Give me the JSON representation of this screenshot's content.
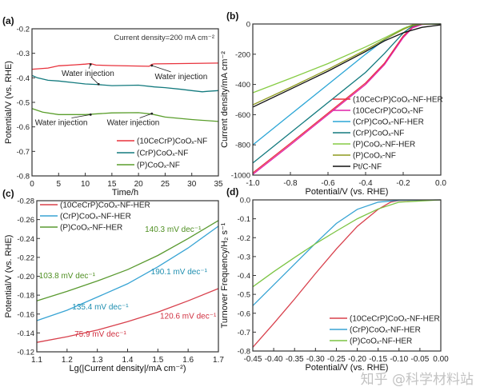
{
  "watermark": "知乎 @科学材料站",
  "chart_data": [
    {
      "panel": "(a)",
      "type": "line",
      "xlabel": "Time/h",
      "ylabel": "Potential/V (vs. RHE)",
      "xlim": [
        0,
        35
      ],
      "ylim": [
        -0.8,
        -0.2
      ],
      "xticks": [
        0,
        5,
        10,
        15,
        20,
        25,
        30,
        35
      ],
      "xtick_labels": [
        "0",
        "5",
        "10",
        "15",
        "20",
        "25",
        "30",
        "35"
      ],
      "yticks": [
        -0.2,
        -0.3,
        -0.4,
        -0.5,
        -0.6,
        -0.7,
        -0.8
      ],
      "ytick_labels": [
        "-0.2",
        "-0.3",
        "-0.4",
        "-0.5",
        "-0.6",
        "-0.7",
        "-0.8"
      ],
      "legend_position": "bottom-right",
      "note": "Current density=200 mA cm⁻²",
      "annotations": [
        {
          "text": "Water injection",
          "x": 10.5,
          "y": -0.392,
          "arrows": [
            [
              11,
              -0.345
            ],
            [
              12.5,
              -0.426
            ]
          ]
        },
        {
          "text": "Water injection",
          "x": 28,
          "y": -0.405,
          "arrows": [
            [
              22.5,
              -0.35
            ]
          ]
        },
        {
          "text": "Water injection",
          "x": 5.5,
          "y": -0.593,
          "arrows": [
            [
              11,
              -0.55
            ]
          ]
        },
        {
          "text": "Water injection",
          "x": 19,
          "y": -0.593,
          "arrows": [
            [
              22.5,
              -0.546
            ]
          ]
        }
      ],
      "series": [
        {
          "name": "(10CeCrP)CoOₓ-NF",
          "color": "#e8323c",
          "x": [
            0,
            3,
            5,
            8,
            10,
            11,
            12,
            15,
            20,
            22,
            22.5,
            23,
            28,
            35
          ],
          "y": [
            -0.365,
            -0.36,
            -0.351,
            -0.347,
            -0.344,
            -0.342,
            -0.348,
            -0.35,
            -0.352,
            -0.353,
            -0.345,
            -0.343,
            -0.342,
            -0.34
          ]
        },
        {
          "name": "(CrP)CoOₓ-NF",
          "color": "#137a7e",
          "x": [
            0,
            1,
            3,
            5,
            8,
            10,
            12,
            15,
            20,
            23,
            25,
            28,
            30,
            32,
            33,
            35
          ],
          "y": [
            -0.39,
            -0.4,
            -0.41,
            -0.413,
            -0.42,
            -0.425,
            -0.427,
            -0.432,
            -0.43,
            -0.437,
            -0.44,
            -0.447,
            -0.452,
            -0.457,
            -0.455,
            -0.452
          ]
        },
        {
          "name": "(P)CoOₓ-NF",
          "color": "#5a9e2c",
          "x": [
            0,
            2,
            5,
            10,
            15,
            20,
            22.5,
            25,
            30,
            35
          ],
          "y": [
            -0.525,
            -0.54,
            -0.55,
            -0.55,
            -0.543,
            -0.542,
            -0.548,
            -0.56,
            -0.57,
            -0.578
          ]
        }
      ]
    },
    {
      "panel": "(b)",
      "type": "line",
      "xlabel": "Potential/V (vs. RHE)",
      "ylabel": "Current density/mA cm⁻²",
      "xlim": [
        -1.0,
        0.0
      ],
      "ylim": [
        -1000,
        0
      ],
      "xticks": [
        -1.0,
        -0.8,
        -0.6,
        -0.4,
        -0.2,
        0.0
      ],
      "xtick_labels": [
        "-1.0",
        "-0.8",
        "-0.6",
        "-0.4",
        "-0.2",
        "0.0"
      ],
      "yticks": [
        0,
        -200,
        -400,
        -600,
        -800,
        -1000
      ],
      "ytick_labels": [
        "0",
        "-200",
        "-400",
        "-600",
        "-800",
        "-1000"
      ],
      "legend_position": "bottom-right",
      "series": [
        {
          "name": "(10CeCrP)CoOₓ-NF-HER",
          "color": "#e8323c",
          "x": [
            -1,
            -0.8,
            -0.6,
            -0.4,
            -0.3,
            -0.2,
            -0.15,
            -0.1,
            0
          ],
          "y": [
            -985,
            -790,
            -590,
            -390,
            -260,
            -80,
            -20,
            -2,
            0
          ]
        },
        {
          "name": "(10CeCrP)CoOₓ-NF",
          "color": "#e020a8",
          "x": [
            -1,
            -0.8,
            -0.6,
            -0.4,
            -0.3,
            -0.2,
            -0.15,
            -0.1,
            0
          ],
          "y": [
            -995,
            -800,
            -600,
            -400,
            -270,
            -90,
            -25,
            -3,
            0
          ]
        },
        {
          "name": "(CrP)CoOₓ-NF-HER",
          "color": "#2ba6d6",
          "x": [
            -1,
            -0.8,
            -0.6,
            -0.4,
            -0.3,
            -0.2,
            -0.15,
            -0.1,
            0
          ],
          "y": [
            -800,
            -600,
            -400,
            -200,
            -105,
            -30,
            -6,
            -1,
            0
          ]
        },
        {
          "name": "(CrP)CoOₓ-NF",
          "color": "#137a7e",
          "x": [
            -1,
            -0.8,
            -0.6,
            -0.4,
            -0.3,
            -0.2,
            -0.15,
            -0.1,
            0
          ],
          "y": [
            -920,
            -720,
            -520,
            -320,
            -195,
            -60,
            -12,
            -1,
            0
          ]
        },
        {
          "name": "(P)CoOₓ-NF-HER",
          "color": "#86cc44",
          "x": [
            -1,
            -0.8,
            -0.6,
            -0.4,
            -0.3,
            -0.2,
            -0.15,
            -0.1,
            0
          ],
          "y": [
            -455,
            -360,
            -262,
            -152,
            -92,
            -30,
            -6,
            -1,
            0
          ]
        },
        {
          "name": "(P)CoOₓ-NF",
          "color": "#8e9a1e",
          "x": [
            -1,
            -0.8,
            -0.6,
            -0.4,
            -0.3,
            -0.2,
            -0.15,
            -0.1,
            0
          ],
          "y": [
            -535,
            -420,
            -300,
            -172,
            -102,
            -36,
            -8,
            -1,
            0
          ]
        },
        {
          "name": "Pt/C-NF",
          "color": "#111111",
          "x": [
            -1,
            -0.8,
            -0.6,
            -0.4,
            -0.3,
            -0.2,
            -0.1,
            0
          ],
          "y": [
            -550,
            -432,
            -312,
            -182,
            -112,
            -58,
            -22,
            -6
          ]
        }
      ]
    },
    {
      "panel": "(c)",
      "type": "line",
      "xlabel": "Lg(|Current density|/mA cm⁻²)",
      "ylabel": "Potential/V (vs. RHE)",
      "xlim": [
        1.1,
        1.7
      ],
      "ylim": [
        -0.12,
        -0.28
      ],
      "xticks": [
        1.1,
        1.2,
        1.3,
        1.4,
        1.5,
        1.6,
        1.7
      ],
      "xtick_labels": [
        "1.1",
        "1.2",
        "1.3",
        "1.4",
        "1.5",
        "1.6",
        "1.7"
      ],
      "yticks": [
        -0.28,
        -0.26,
        -0.24,
        -0.22,
        -0.2,
        -0.18,
        -0.16,
        -0.14,
        -0.12
      ],
      "ytick_labels": [
        "-0.28",
        "-0.26",
        "-0.24",
        "-0.22",
        "-0.20",
        "-0.18",
        "-0.16",
        "-0.14",
        "-0.12"
      ],
      "legend_position": "top-left",
      "annotations": [
        {
          "text": "140.3 mV dec⁻¹",
          "x": 1.55,
          "y": -0.247,
          "color": "#4f8f22"
        },
        {
          "text": "190.1 mV dec⁻¹",
          "x": 1.57,
          "y": -0.202,
          "color": "#1f8fb0"
        },
        {
          "text": "103.8 mV dec⁻¹",
          "x": 1.2,
          "y": -0.198,
          "color": "#4f8f22"
        },
        {
          "text": "135.4 mV dec⁻¹",
          "x": 1.31,
          "y": -0.165,
          "color": "#1f8fb0"
        },
        {
          "text": "120.6 mV dec⁻¹",
          "x": 1.6,
          "y": -0.155,
          "color": "#d03040"
        },
        {
          "text": "75.9 mV dec⁻¹",
          "x": 1.31,
          "y": -0.136,
          "color": "#d03040"
        }
      ],
      "series": [
        {
          "name": "(10CeCrP)CoOₓ-NF-HER",
          "color": "#d8404c",
          "x": [
            1.1,
            1.2,
            1.3,
            1.4,
            1.5,
            1.6,
            1.7
          ],
          "y": [
            -0.13,
            -0.136,
            -0.143,
            -0.152,
            -0.162,
            -0.174,
            -0.187
          ]
        },
        {
          "name": "(CrP)CoOₓ-NF-HER",
          "color": "#38a4d4",
          "x": [
            1.1,
            1.2,
            1.3,
            1.4,
            1.5,
            1.6,
            1.7
          ],
          "y": [
            -0.153,
            -0.164,
            -0.178,
            -0.192,
            -0.21,
            -0.23,
            -0.253
          ]
        },
        {
          "name": "(P)CoOₓ-NF-HER",
          "color": "#5a9a30",
          "x": [
            1.1,
            1.2,
            1.3,
            1.4,
            1.5,
            1.6,
            1.7
          ],
          "y": [
            -0.174,
            -0.184,
            -0.195,
            -0.207,
            -0.222,
            -0.24,
            -0.259
          ]
        }
      ]
    },
    {
      "panel": "(d)",
      "type": "line",
      "xlabel": "Potential/V (vs. RHE)",
      "ylabel": "Turnover Frequency/H₂ s⁻¹",
      "xlim": [
        -0.45,
        0.0
      ],
      "ylim": [
        -0.8,
        0.0
      ],
      "xticks": [
        -0.45,
        -0.4,
        -0.35,
        -0.3,
        -0.25,
        -0.2,
        -0.15,
        -0.1,
        -0.05,
        0.0
      ],
      "xtick_labels": [
        "-0.45",
        "-0.40",
        "-0.35",
        "-0.30",
        "-0.25",
        "-0.20",
        "-0.15",
        "-0.10",
        "-0.05",
        "0.00"
      ],
      "yticks": [
        0.0,
        -0.1,
        -0.2,
        -0.3,
        -0.4,
        -0.5,
        -0.6,
        -0.7,
        -0.8
      ],
      "ytick_labels": [
        "0.0",
        "-0.1",
        "-0.2",
        "-0.3",
        "-0.4",
        "-0.5",
        "-0.6",
        "-0.7",
        "-0.8"
      ],
      "legend_position": "bottom-right",
      "series": [
        {
          "name": "(10CeCrP)CoOₓ-NF-HER",
          "color": "#d8404c",
          "x": [
            -0.45,
            -0.4,
            -0.35,
            -0.3,
            -0.25,
            -0.2,
            -0.15,
            -0.12,
            -0.1,
            0
          ],
          "y": [
            -0.78,
            -0.655,
            -0.525,
            -0.39,
            -0.26,
            -0.14,
            -0.05,
            -0.012,
            -0.003,
            0
          ]
        },
        {
          "name": "(CrP)CoOₓ-NF-HER",
          "color": "#38a4d4",
          "x": [
            -0.45,
            -0.4,
            -0.35,
            -0.3,
            -0.25,
            -0.2,
            -0.15,
            -0.1,
            0
          ],
          "y": [
            -0.56,
            -0.45,
            -0.34,
            -0.23,
            -0.125,
            -0.05,
            -0.012,
            -0.002,
            0
          ]
        },
        {
          "name": "(P)CoOₓ-NF-HER",
          "color": "#7cc444",
          "x": [
            -0.45,
            -0.4,
            -0.35,
            -0.3,
            -0.25,
            -0.2,
            -0.15,
            -0.1,
            0
          ],
          "y": [
            -0.46,
            -0.38,
            -0.305,
            -0.232,
            -0.165,
            -0.1,
            -0.048,
            -0.012,
            0
          ]
        }
      ]
    }
  ]
}
